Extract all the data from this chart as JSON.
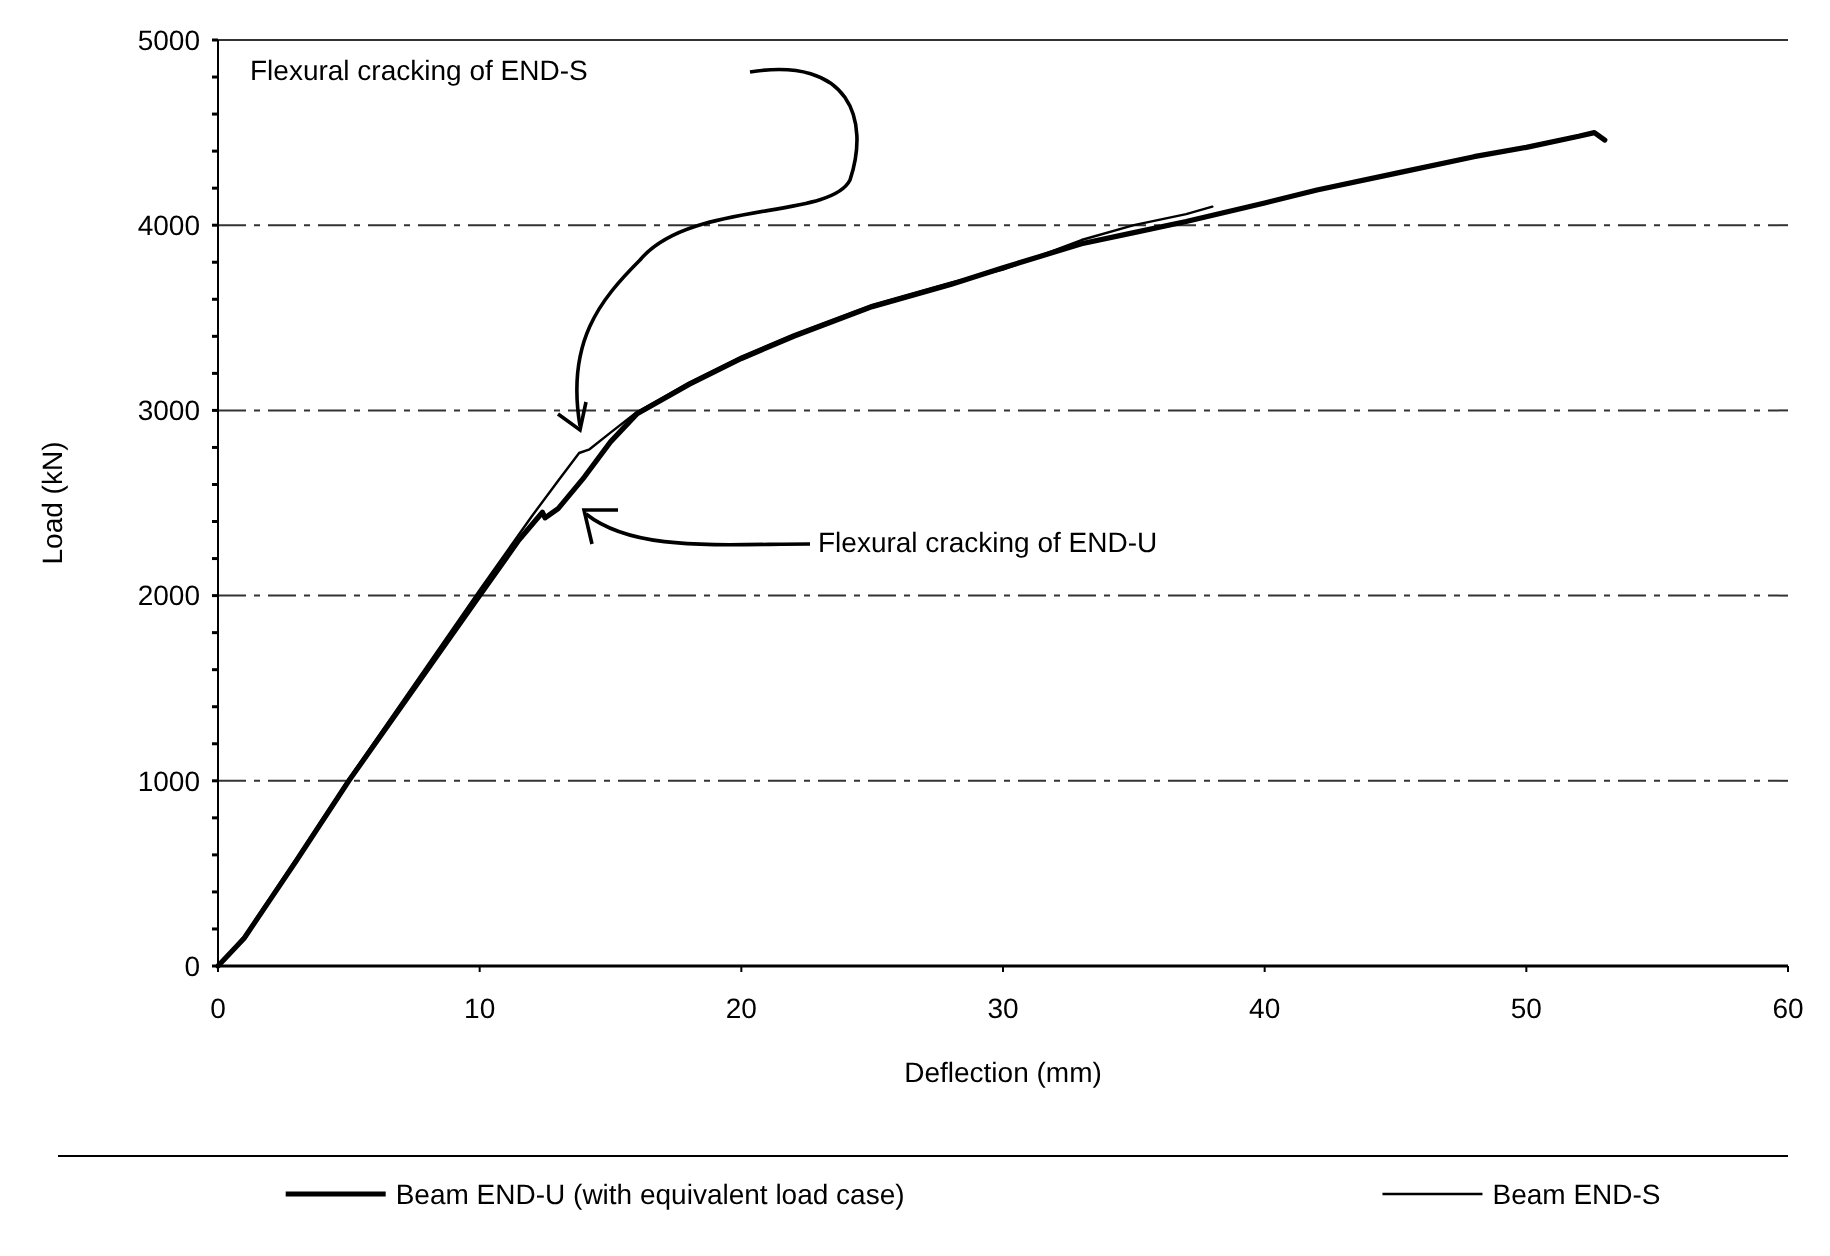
{
  "chart_data": {
    "type": "line",
    "xlabel": "Deflection (mm)",
    "ylabel": "Load (kN)",
    "xlim": [
      0,
      60
    ],
    "xticks": [
      0,
      10,
      20,
      30,
      40,
      50,
      60
    ],
    "ylim": [
      0,
      5000
    ],
    "yticks": [
      0,
      {
        "value": 200,
        "label": null
      },
      {
        "value": 400,
        "label": null
      },
      {
        "value": 600,
        "label": null
      },
      {
        "value": 800,
        "label": null
      },
      1000,
      {
        "value": 1200,
        "label": null
      },
      {
        "value": 1400,
        "label": null
      },
      {
        "value": 1600,
        "label": null
      },
      {
        "value": 1800,
        "label": null
      },
      2000,
      {
        "value": 2200,
        "label": null
      },
      {
        "value": 2400,
        "label": null
      },
      {
        "value": 2600,
        "label": null
      },
      {
        "value": 2800,
        "label": null
      },
      3000,
      {
        "value": 3200,
        "label": null
      },
      {
        "value": 3400,
        "label": null
      },
      {
        "value": 3600,
        "label": null
      },
      {
        "value": 3800,
        "label": null
      },
      4000,
      {
        "value": 4200,
        "label": null
      },
      {
        "value": 4400,
        "label": null
      },
      {
        "value": 4600,
        "label": null
      },
      {
        "value": 4800,
        "label": null
      },
      5000
    ],
    "grid": "y",
    "legend": "bottom",
    "marker": "none",
    "line_style": "solid",
    "series": [
      {
        "name": "Beam END-U (with equivalent load case)",
        "color": "#000000",
        "x": [
          0,
          1,
          2,
          3,
          5,
          7.5,
          10,
          11.5,
          12.4,
          12.5,
          13,
          14,
          15,
          16,
          17,
          18,
          20,
          22,
          25,
          28,
          30,
          33,
          35,
          37,
          40,
          42,
          45,
          48,
          50,
          52,
          52.6,
          53
        ],
        "values": [
          0,
          150,
          360,
          570,
          1000,
          1500,
          2000,
          2300,
          2450,
          2420,
          2470,
          2640,
          2830,
          2980,
          3060,
          3140,
          3280,
          3400,
          3560,
          3680,
          3770,
          3900,
          3960,
          4020,
          4120,
          4190,
          4280,
          4370,
          4420,
          4480,
          4500,
          4460
        ]
      },
      {
        "name": "Beam END-S",
        "color": "#000000",
        "x": [
          0,
          1,
          2,
          3,
          5,
          7.5,
          10,
          12,
          13,
          13.8,
          14.2,
          15,
          16,
          17,
          18,
          20,
          22,
          25,
          28,
          30,
          33,
          35,
          37,
          38
        ],
        "values": [
          0,
          160,
          370,
          580,
          1010,
          1520,
          2030,
          2430,
          2620,
          2770,
          2790,
          2880,
          2990,
          3070,
          3150,
          3290,
          3410,
          3570,
          3690,
          3760,
          3920,
          4000,
          4060,
          4100
        ]
      }
    ],
    "annotations": [
      "Flexural cracking of END-S",
      "Flexural cracking of END-U"
    ]
  }
}
